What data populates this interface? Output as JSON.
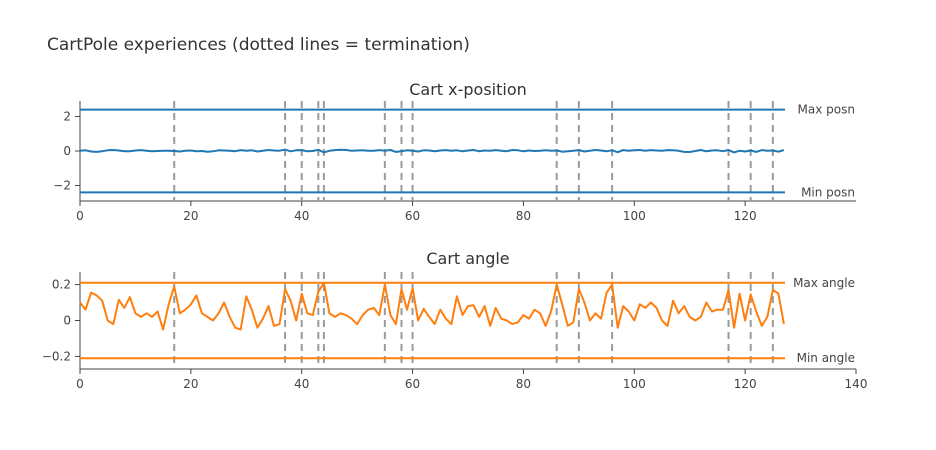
{
  "title": "CartPole experiences (dotted lines = termination)",
  "chart_data": [
    {
      "type": "line",
      "title": "Cart x-position",
      "xlabel": "",
      "ylabel": "",
      "xlim": [
        0,
        130
      ],
      "ylim": [
        -2.9,
        2.9
      ],
      "xticks": [
        0,
        20,
        40,
        60,
        80,
        100,
        120
      ],
      "xtick_labels": [
        "0",
        "20",
        "40",
        "60",
        "80",
        "100",
        "120"
      ],
      "yticks": [
        -2,
        0,
        2
      ],
      "ytick_labels": [
        "−2",
        "0",
        "2"
      ],
      "grid": false,
      "color": "#1f77b4",
      "terminations": [
        17,
        37,
        40,
        43,
        44,
        55,
        58,
        60,
        86,
        90,
        96,
        117,
        121,
        125
      ],
      "thresholds": [
        {
          "name": "Max posn",
          "y": 2.4,
          "label": "Max posn"
        },
        {
          "name": "Min posn",
          "y": -2.4,
          "label": "Min posn"
        }
      ],
      "series": [
        {
          "values": [
            0.01,
            0.04,
            -0.03,
            -0.05,
            -0.01,
            0.04,
            0.06,
            0.03,
            -0.02,
            -0.01,
            0.03,
            0.05,
            0.02,
            -0.01,
            0.0,
            0.02,
            0.01,
            0.0,
            -0.03,
            0.01,
            0.03,
            -0.02,
            0.0,
            -0.04,
            -0.02,
            0.04,
            0.03,
            0.02,
            -0.01,
            0.05,
            0.02,
            0.04,
            -0.03,
            0.01,
            0.06,
            0.03,
            0.02,
            0.08,
            -0.02,
            0.04,
            0.05,
            -0.02,
            0.0,
            0.07,
            -0.08,
            0.01,
            0.05,
            0.07,
            0.06,
            0.02,
            0.03,
            0.04,
            0.01,
            0.02,
            0.05,
            0.02,
            0.06,
            -0.05,
            -0.01,
            0.04,
            0.02,
            -0.03,
            0.04,
            0.03,
            -0.02,
            0.03,
            0.05,
            0.01,
            0.04,
            -0.02,
            0.03,
            0.06,
            -0.01,
            0.03,
            0.01,
            0.05,
            0.02,
            -0.01,
            0.06,
            0.04,
            -0.02,
            0.03,
            0.0,
            0.02,
            0.04,
            0.01,
            0.03,
            -0.04,
            -0.02,
            0.01,
            0.05,
            -0.03,
            0.02,
            0.06,
            0.03,
            -0.02,
            0.04,
            -0.07,
            0.05,
            0.01,
            0.04,
            0.06,
            0.02,
            0.05,
            0.03,
            0.02,
            0.05,
            0.04,
            0.01,
            -0.05,
            -0.06,
            0.0,
            0.06,
            -0.02,
            0.03,
            0.04,
            -0.01,
            0.06,
            -0.08,
            0.02,
            -0.03,
            0.03,
            -0.05,
            0.05,
            0.01,
            0.03,
            -0.04,
            0.05
          ]
        }
      ]
    },
    {
      "type": "line",
      "title": "Cart angle",
      "xlabel": "",
      "ylabel": "",
      "xlim": [
        0,
        140
      ],
      "ylim": [
        -0.27,
        0.27
      ],
      "xticks": [
        0,
        20,
        40,
        60,
        80,
        100,
        120,
        140
      ],
      "xtick_labels": [
        "0",
        "20",
        "40",
        "60",
        "80",
        "100",
        "120",
        "140"
      ],
      "yticks": [
        -0.2,
        0,
        0.2
      ],
      "ytick_labels": [
        "−0.2",
        "0",
        "0.2"
      ],
      "grid": false,
      "color": "#ff7f0e",
      "terminations": [
        17,
        37,
        40,
        43,
        44,
        55,
        58,
        60,
        86,
        90,
        96,
        117,
        121,
        125
      ],
      "thresholds": [
        {
          "name": "Max angle",
          "y": 0.21,
          "label": "Max angle"
        },
        {
          "name": "Min angle",
          "y": -0.21,
          "label": "Min angle"
        }
      ],
      "series": [
        {
          "values": [
            0.1,
            0.06,
            0.155,
            0.14,
            0.11,
            0.0,
            -0.02,
            0.115,
            0.07,
            0.13,
            0.04,
            0.02,
            0.04,
            0.02,
            0.05,
            -0.05,
            0.09,
            0.19,
            0.04,
            0.06,
            0.09,
            0.14,
            0.04,
            0.02,
            0.0,
            0.04,
            0.1,
            0.02,
            -0.04,
            -0.05,
            0.135,
            0.06,
            -0.04,
            0.01,
            0.08,
            -0.03,
            -0.02,
            0.175,
            0.11,
            0.0,
            0.15,
            0.04,
            0.03,
            0.16,
            0.21,
            0.04,
            0.02,
            0.04,
            0.03,
            0.01,
            -0.02,
            0.03,
            0.06,
            0.07,
            0.03,
            0.2,
            0.03,
            -0.02,
            0.175,
            0.06,
            0.18,
            0.0,
            0.065,
            0.02,
            -0.02,
            0.06,
            0.01,
            -0.02,
            0.135,
            0.03,
            0.08,
            0.085,
            0.02,
            0.08,
            -0.03,
            0.07,
            0.01,
            0.0,
            -0.02,
            -0.01,
            0.03,
            0.01,
            0.06,
            0.04,
            -0.03,
            0.05,
            0.2,
            0.09,
            -0.03,
            -0.01,
            0.175,
            0.1,
            0.0,
            0.04,
            0.01,
            0.155,
            0.2,
            -0.04,
            0.08,
            0.05,
            0.0,
            0.09,
            0.07,
            0.1,
            0.07,
            0.0,
            -0.03,
            0.11,
            0.04,
            0.08,
            0.02,
            0.0,
            0.02,
            0.1,
            0.05,
            0.06,
            0.06,
            0.17,
            -0.04,
            0.15,
            0.0,
            0.145,
            0.05,
            -0.03,
            0.02,
            0.17,
            0.15,
            -0.02
          ]
        }
      ]
    }
  ]
}
